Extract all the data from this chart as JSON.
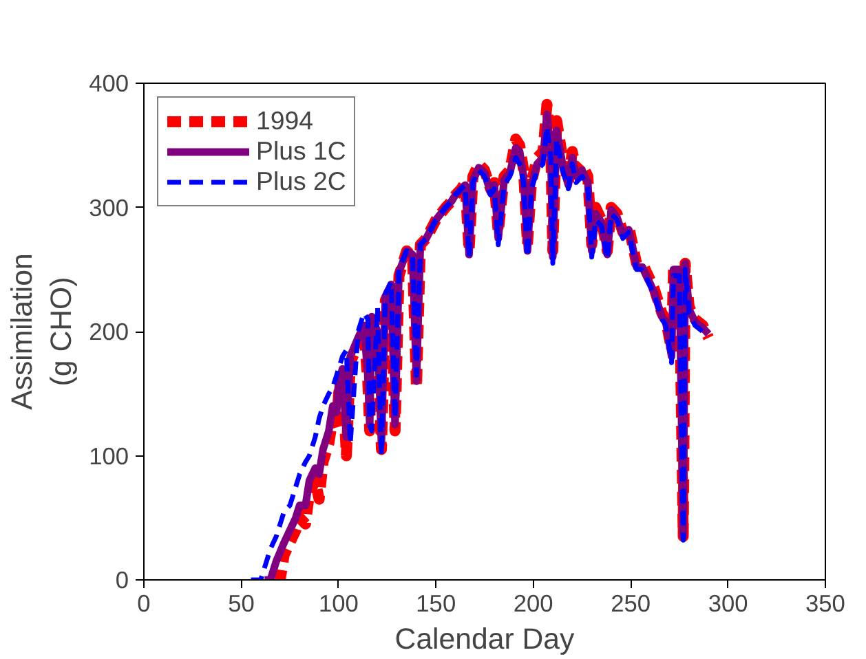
{
  "chart_data": {
    "type": "line",
    "xlabel": "Calendar Day",
    "ylabel": "Assimilation\n(g CHO)",
    "xlim": [
      0,
      350
    ],
    "ylim": [
      0,
      400
    ],
    "xticks": [
      0,
      50,
      100,
      150,
      200,
      250,
      300,
      350
    ],
    "yticks": [
      0,
      100,
      200,
      300,
      400
    ],
    "grid": false,
    "legend": "top left",
    "marker": "none",
    "series": [
      {
        "name": "1994",
        "color": "#ff0000",
        "line_style": "dashed",
        "x": [
          68,
          70,
          72,
          75,
          78,
          80,
          83,
          85,
          88,
          90,
          92,
          95,
          97,
          99,
          100,
          102,
          104,
          106,
          110,
          113,
          115,
          116,
          117,
          120,
          122,
          124,
          127,
          129,
          131,
          133,
          135,
          138,
          140,
          142,
          145,
          150,
          155,
          158,
          160,
          163,
          165,
          167,
          169,
          172,
          175,
          178,
          180,
          182,
          185,
          188,
          191,
          193,
          195,
          197,
          199,
          202,
          205,
          207,
          209,
          210,
          212,
          215,
          218,
          220,
          222,
          225,
          228,
          230,
          232,
          235,
          238,
          240,
          243,
          246,
          249,
          251,
          253,
          256,
          259,
          262,
          266,
          268,
          271,
          272,
          275,
          277,
          278,
          280,
          283,
          287,
          290
        ],
        "values": [
          0,
          0,
          20,
          30,
          40,
          50,
          45,
          70,
          80,
          65,
          95,
          110,
          130,
          120,
          150,
          165,
          100,
          175,
          190,
          200,
          160,
          120,
          210,
          195,
          105,
          225,
          235,
          120,
          245,
          255,
          265,
          260,
          155,
          270,
          275,
          290,
          300,
          305,
          310,
          315,
          320,
          265,
          325,
          335,
          330,
          315,
          320,
          280,
          325,
          330,
          355,
          350,
          330,
          270,
          320,
          340,
          345,
          383,
          350,
          265,
          370,
          340,
          320,
          345,
          330,
          335,
          325,
          270,
          300,
          290,
          265,
          300,
          295,
          280,
          285,
          270,
          255,
          255,
          245,
          235,
          215,
          210,
          185,
          250,
          250,
          35,
          255,
          220,
          210,
          205,
          195
        ]
      },
      {
        "name": "Plus 1C",
        "color": "#800080",
        "line_style": "solid",
        "x": [
          62,
          65,
          68,
          72,
          75,
          78,
          80,
          83,
          85,
          88,
          90,
          92,
          95,
          97,
          99,
          100,
          102,
          104,
          106,
          110,
          113,
          115,
          116,
          117,
          120,
          122,
          124,
          127,
          129,
          131,
          133,
          135,
          138,
          140,
          142,
          145,
          150,
          155,
          158,
          160,
          163,
          165,
          167,
          169,
          172,
          175,
          178,
          180,
          182,
          185,
          188,
          191,
          193,
          195,
          197,
          199,
          202,
          205,
          207,
          209,
          210,
          212,
          215,
          218,
          220,
          222,
          225,
          228,
          230,
          232,
          235,
          238,
          240,
          243,
          246,
          249,
          251,
          253,
          256,
          259,
          262,
          266,
          268,
          271,
          272,
          275,
          277,
          278,
          280,
          283,
          287,
          290
        ],
        "values": [
          0,
          0,
          15,
          30,
          40,
          50,
          60,
          60,
          80,
          90,
          85,
          105,
          120,
          140,
          135,
          160,
          170,
          115,
          180,
          195,
          205,
          165,
          125,
          212,
          200,
          110,
          228,
          238,
          125,
          248,
          256,
          265,
          262,
          160,
          270,
          275,
          290,
          300,
          305,
          310,
          315,
          318,
          262,
          322,
          332,
          328,
          312,
          318,
          275,
          322,
          328,
          348,
          345,
          325,
          265,
          318,
          335,
          340,
          375,
          345,
          260,
          362,
          335,
          318,
          340,
          325,
          330,
          320,
          265,
          295,
          288,
          262,
          298,
          292,
          278,
          282,
          268,
          252,
          252,
          242,
          232,
          212,
          208,
          180,
          250,
          250,
          35,
          255,
          218,
          208,
          203,
          198
        ]
      },
      {
        "name": "Plus 2C",
        "color": "#0000ff",
        "line_style": "dashed",
        "x": [
          55,
          60,
          63,
          65,
          68,
          70,
          72,
          75,
          78,
          80,
          83,
          85,
          88,
          90,
          92,
          95,
          97,
          99,
          100,
          102,
          104,
          106,
          110,
          113,
          115,
          116,
          117,
          120,
          122,
          124,
          127,
          129,
          131,
          133,
          135,
          138,
          140,
          142,
          145,
          150,
          155,
          158,
          160,
          163,
          165,
          167,
          169,
          172,
          175,
          178,
          180,
          182,
          185,
          188,
          191,
          193,
          195,
          197,
          199,
          202,
          205,
          207,
          209,
          210,
          212,
          215,
          218,
          220,
          222,
          225,
          228,
          230,
          232,
          235,
          238,
          240,
          243,
          246,
          249,
          251,
          253,
          256,
          259,
          262,
          266,
          268,
          271,
          272,
          275,
          277,
          278,
          280,
          283,
          287,
          290
        ],
        "values": [
          0,
          0,
          15,
          25,
          35,
          45,
          55,
          60,
          75,
          85,
          95,
          100,
          115,
          130,
          140,
          150,
          155,
          165,
          170,
          180,
          185,
          110,
          200,
          215,
          210,
          125,
          120,
          220,
          100,
          230,
          240,
          130,
          250,
          258,
          265,
          262,
          165,
          270,
          275,
          290,
          300,
          305,
          310,
          315,
          318,
          260,
          320,
          330,
          325,
          310,
          315,
          270,
          318,
          325,
          340,
          335,
          320,
          260,
          315,
          330,
          335,
          365,
          340,
          255,
          355,
          330,
          315,
          335,
          320,
          325,
          318,
          260,
          290,
          285,
          258,
          295,
          290,
          275,
          280,
          265,
          250,
          250,
          240,
          230,
          210,
          205,
          175,
          245,
          245,
          32,
          250,
          215,
          205,
          200,
          200
        ]
      }
    ]
  }
}
